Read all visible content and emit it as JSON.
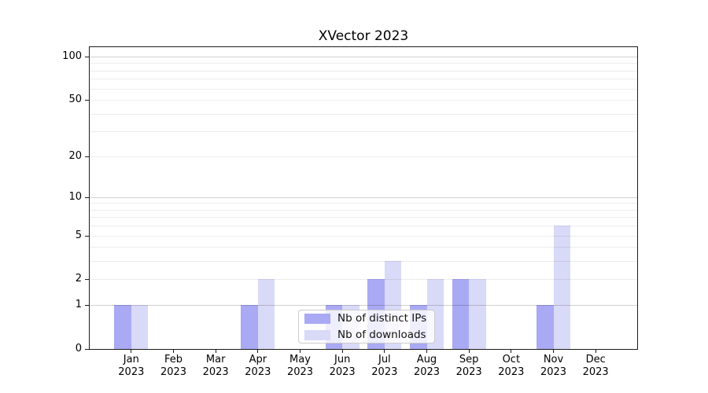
{
  "title": "XVector 2023",
  "chart_data": {
    "type": "bar",
    "title": "XVector 2023",
    "scale": "log1p",
    "grid": true,
    "months": [
      "Jan",
      "Feb",
      "Mar",
      "Apr",
      "May",
      "Jun",
      "Jul",
      "Aug",
      "Sep",
      "Oct",
      "Nov",
      "Dec"
    ],
    "year": "2023",
    "series": [
      {
        "name": "Nb of distinct IPs",
        "color": "#a9a9f4",
        "values": [
          1,
          0,
          0,
          1,
          0,
          1,
          2,
          1,
          2,
          0,
          1,
          0
        ]
      },
      {
        "name": "Nb of downloads",
        "color": "#d9d9f8",
        "values": [
          1,
          0,
          0,
          2,
          0,
          1,
          3,
          2,
          2,
          0,
          6,
          0
        ]
      }
    ],
    "yticks": [
      0,
      1,
      2,
      5,
      10,
      20,
      50,
      100
    ],
    "major_gridlines": [
      1,
      10,
      100
    ],
    "minor_gridlines": [
      2,
      3,
      4,
      5,
      6,
      7,
      8,
      9,
      20,
      30,
      40,
      50,
      60,
      70,
      80,
      90
    ],
    "ylim": [
      0,
      116
    ],
    "legend_position": "lower-center-inside"
  },
  "colors": {
    "bar_distinct_ips": "#a9a9f4",
    "bar_downloads": "#d9d9f8",
    "axis": "#1c1c1c",
    "grid_major": "rgba(0,0,0,0.18)",
    "grid_minor": "rgba(0,0,0,0.075)",
    "background": "#ffffff"
  },
  "legend": {
    "items": [
      {
        "label": "Nb of distinct IPs"
      },
      {
        "label": "Nb of downloads"
      }
    ]
  }
}
